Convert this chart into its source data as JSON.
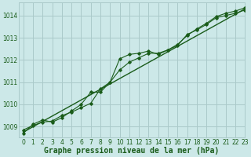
{
  "title": "Graphe pression niveau de la mer (hPa)",
  "bg_color": "#cce8e8",
  "grid_color": "#aacaca",
  "line_color": "#1a5c1a",
  "marker_color": "#1a5c1a",
  "xlim": [
    -0.5,
    23
  ],
  "ylim": [
    1008.5,
    1014.6
  ],
  "yticks": [
    1009,
    1010,
    1011,
    1012,
    1013,
    1014
  ],
  "xticks": [
    0,
    1,
    2,
    3,
    4,
    5,
    6,
    7,
    8,
    9,
    10,
    11,
    12,
    13,
    14,
    15,
    16,
    17,
    18,
    19,
    20,
    21,
    22,
    23
  ],
  "series1_x": [
    0,
    1,
    2,
    3,
    4,
    5,
    6,
    7,
    8,
    9,
    10,
    11,
    12,
    13,
    14,
    15,
    16,
    17,
    18,
    19,
    20,
    21,
    22,
    23
  ],
  "series1_y": [
    1008.7,
    1009.1,
    1009.3,
    1009.2,
    1009.4,
    1009.7,
    1010.0,
    1010.55,
    1010.55,
    1011.0,
    1012.05,
    1012.25,
    1012.3,
    1012.4,
    1012.25,
    1012.45,
    1012.65,
    1013.15,
    1013.35,
    1013.6,
    1013.9,
    1014.0,
    1014.1,
    1014.25
  ],
  "series2_x": [
    0,
    1,
    2,
    3,
    4,
    5,
    6,
    7,
    8,
    9,
    10,
    11,
    12,
    13,
    14,
    15,
    16,
    17,
    18,
    19,
    20,
    21,
    22,
    23
  ],
  "series2_y": [
    1008.85,
    1009.05,
    1009.2,
    1009.25,
    1009.5,
    1009.65,
    1009.85,
    1010.05,
    1010.7,
    1011.0,
    1011.55,
    1011.9,
    1012.1,
    1012.3,
    1012.3,
    1012.45,
    1012.7,
    1013.1,
    1013.4,
    1013.65,
    1013.95,
    1014.1,
    1014.2,
    1014.35
  ],
  "series3_x": [
    0,
    23
  ],
  "series3_y": [
    1008.75,
    1014.3
  ],
  "title_fontsize": 7.0,
  "tick_fontsize": 5.5
}
